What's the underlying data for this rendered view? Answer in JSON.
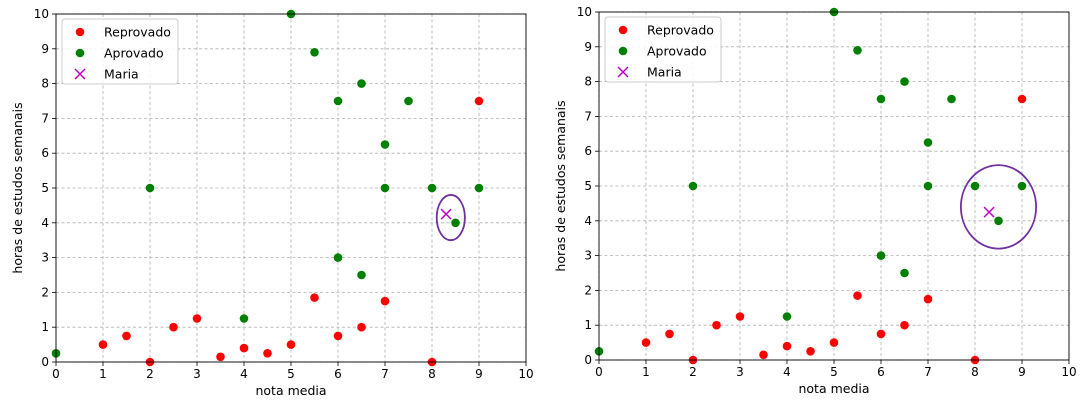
{
  "chart_data": [
    {
      "type": "scatter",
      "xlabel": "nota media",
      "ylabel": "horas de estudos semanais",
      "xlim": [
        0,
        10
      ],
      "ylim": [
        0,
        10
      ],
      "xticks": [
        "0",
        "1",
        "2",
        "3",
        "4",
        "5",
        "6",
        "7",
        "8",
        "9",
        "10"
      ],
      "yticks": [
        "0",
        "1",
        "2",
        "3",
        "4",
        "5",
        "6",
        "7",
        "8",
        "9",
        "10"
      ],
      "grid": true,
      "legend": "top-left",
      "series": [
        {
          "name": "Reprovado",
          "color": "#ff0000",
          "marker": "circle",
          "points": [
            [
              1,
              0.5
            ],
            [
              1.5,
              0.75
            ],
            [
              2,
              0
            ],
            [
              2.5,
              1
            ],
            [
              3,
              1.25
            ],
            [
              3.5,
              0.15
            ],
            [
              4,
              0.4
            ],
            [
              4.5,
              0.25
            ],
            [
              5,
              0.5
            ],
            [
              5.5,
              1.85
            ],
            [
              6,
              0.75
            ],
            [
              6.5,
              1
            ],
            [
              7,
              1.75
            ],
            [
              8,
              0
            ],
            [
              9,
              7.5
            ]
          ]
        },
        {
          "name": "Aprovado",
          "color": "#008000",
          "marker": "circle",
          "points": [
            [
              0,
              0.25
            ],
            [
              2,
              5
            ],
            [
              4,
              1.25
            ],
            [
              5,
              10
            ],
            [
              5.5,
              8.9
            ],
            [
              6,
              7.5
            ],
            [
              6.5,
              8
            ],
            [
              6,
              3
            ],
            [
              6.5,
              2.5
            ],
            [
              7,
              6.25
            ],
            [
              7,
              5
            ],
            [
              7.5,
              7.5
            ],
            [
              8,
              5
            ],
            [
              8.5,
              4
            ],
            [
              9,
              5
            ]
          ]
        },
        {
          "name": "Maria",
          "color": "#bf00bf",
          "marker": "x",
          "points": [
            [
              8.3,
              4.25
            ]
          ]
        }
      ],
      "annotation": {
        "shape": "ellipse",
        "color": "#7030a0",
        "center": [
          8.4,
          4.15
        ],
        "rx": 0.3,
        "ry": 0.65
      }
    },
    {
      "type": "scatter",
      "xlabel": "nota media",
      "ylabel": "horas de estudos semanais",
      "xlim": [
        0,
        10
      ],
      "ylim": [
        0,
        10
      ],
      "xticks": [
        "0",
        "1",
        "2",
        "3",
        "4",
        "5",
        "6",
        "7",
        "8",
        "9",
        "10"
      ],
      "yticks": [
        "0",
        "1",
        "2",
        "3",
        "4",
        "5",
        "6",
        "7",
        "8",
        "9",
        "10"
      ],
      "grid": true,
      "legend": "top-left",
      "series": [
        {
          "name": "Reprovado",
          "color": "#ff0000",
          "marker": "circle",
          "points": [
            [
              1,
              0.5
            ],
            [
              1.5,
              0.75
            ],
            [
              2,
              0
            ],
            [
              2.5,
              1
            ],
            [
              3,
              1.25
            ],
            [
              3.5,
              0.15
            ],
            [
              4,
              0.4
            ],
            [
              4.5,
              0.25
            ],
            [
              5,
              0.5
            ],
            [
              5.5,
              1.85
            ],
            [
              6,
              0.75
            ],
            [
              6.5,
              1
            ],
            [
              7,
              1.75
            ],
            [
              8,
              0
            ],
            [
              9,
              7.5
            ]
          ]
        },
        {
          "name": "Aprovado",
          "color": "#008000",
          "marker": "circle",
          "points": [
            [
              0,
              0.25
            ],
            [
              2,
              5
            ],
            [
              4,
              1.25
            ],
            [
              5,
              10
            ],
            [
              5.5,
              8.9
            ],
            [
              6,
              7.5
            ],
            [
              6.5,
              8
            ],
            [
              6,
              3
            ],
            [
              6.5,
              2.5
            ],
            [
              7,
              6.25
            ],
            [
              7,
              5
            ],
            [
              7.5,
              7.5
            ],
            [
              8,
              5
            ],
            [
              8.5,
              4
            ],
            [
              9,
              5
            ]
          ]
        },
        {
          "name": "Maria",
          "color": "#bf00bf",
          "marker": "x",
          "points": [
            [
              8.3,
              4.25
            ]
          ]
        }
      ],
      "annotation": {
        "shape": "ellipse",
        "color": "#7030a0",
        "center": [
          8.5,
          4.4
        ],
        "rx": 0.8,
        "ry": 1.2
      }
    }
  ]
}
